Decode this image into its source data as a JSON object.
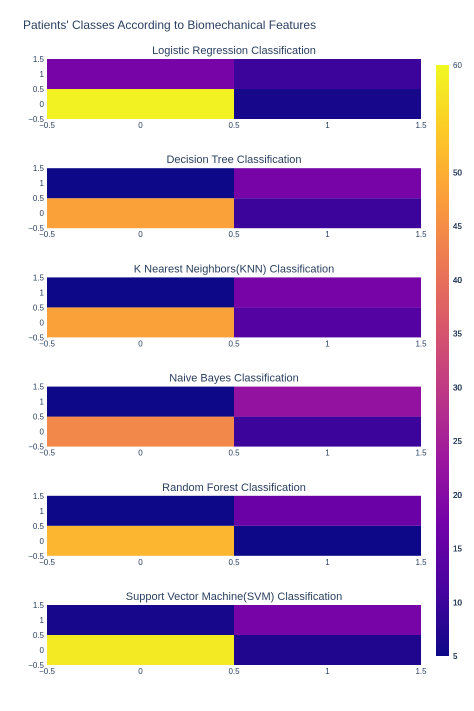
{
  "title": "Patients' Classes According to Biomechanical Features",
  "colors": {
    "text": "#2a3f5f",
    "colorscale": [
      "#0d0887",
      "#46039f",
      "#7201a8",
      "#9c179e",
      "#bd3786",
      "#d8576b",
      "#ed7953",
      "#fb9f3a",
      "#fdca26",
      "#f0f921"
    ]
  },
  "chart_data": [
    {
      "type": "heatmap",
      "title": "Logistic Regression Classification",
      "x": [
        0,
        1
      ],
      "y": [
        0,
        1
      ],
      "z": [
        [
          59,
          6
        ],
        [
          18,
          10
        ]
      ],
      "x_ticks": [
        "−0.5",
        "0",
        "0.5",
        "1",
        "1.5"
      ],
      "y_ticks": [
        "1.5",
        "1",
        "0.5",
        "0",
        "−0.5"
      ],
      "xlim": [
        -0.5,
        1.5
      ],
      "ylim": [
        -0.5,
        1.5
      ],
      "colorbar_ticks": [
        "50",
        "50"
      ]
    },
    {
      "type": "heatmap",
      "title": "Decision Tree Classification",
      "x": [
        0,
        1
      ],
      "y": [
        0,
        1
      ],
      "z": [
        [
          48,
          10
        ],
        [
          5,
          18
        ]
      ],
      "x_ticks": [
        "−0.5",
        "0",
        "0.5",
        "1",
        "1.5"
      ],
      "y_ticks": [
        "1.5",
        "1",
        "0.5",
        "0",
        "−0.5"
      ],
      "xlim": [
        -0.5,
        1.5
      ],
      "ylim": [
        -0.5,
        1.5
      ],
      "colorbar_ticks": [
        "45",
        "40",
        "35",
        "30",
        "25",
        "20",
        "15",
        "10",
        "5"
      ]
    },
    {
      "type": "heatmap",
      "title": "K Nearest Neighbors(KNN) Classification",
      "x": [
        0,
        1
      ],
      "y": [
        0,
        1
      ],
      "z": [
        [
          48,
          13
        ],
        [
          5,
          18
        ]
      ],
      "x_ticks": [
        "−0.5",
        "0",
        "0.5",
        "1",
        "1.5"
      ],
      "y_ticks": [
        "1.5",
        "1",
        "0.5",
        "0",
        "−0.5"
      ],
      "xlim": [
        -0.5,
        1.5
      ],
      "ylim": [
        -0.5,
        1.5
      ],
      "colorbar_ticks": [
        "45",
        "40",
        "35",
        "30",
        "25",
        "20",
        "15",
        "10",
        "5"
      ]
    },
    {
      "type": "heatmap",
      "title": "Naive Bayes Classification",
      "x": [
        0,
        1
      ],
      "y": [
        0,
        1
      ],
      "z": [
        [
          44,
          10
        ],
        [
          5,
          22
        ]
      ],
      "x_ticks": [
        "−0.5",
        "0",
        "0.5",
        "1",
        "1.5"
      ],
      "y_ticks": [
        "1.5",
        "1",
        "0.5",
        "0",
        "−0.5"
      ],
      "xlim": [
        -0.5,
        1.5
      ],
      "ylim": [
        -0.5,
        1.5
      ],
      "colorbar_ticks": [
        "40",
        "35",
        "30",
        "25",
        "20",
        "15",
        "10",
        "5"
      ]
    },
    {
      "type": "heatmap",
      "title": "Random Forest Classification",
      "x": [
        0,
        1
      ],
      "y": [
        0,
        1
      ],
      "z": [
        [
          51,
          5
        ],
        [
          5,
          16
        ]
      ],
      "x_ticks": [
        "−0.5",
        "0",
        "0.5",
        "1",
        "1.5"
      ],
      "y_ticks": [
        "1.5",
        "1",
        "0.5",
        "0",
        "−0.5"
      ],
      "xlim": [
        -0.5,
        1.5
      ],
      "ylim": [
        -0.5,
        1.5
      ],
      "colorbar_ticks": [
        "50",
        "45",
        "40",
        "35",
        "30",
        "25",
        "20",
        "15",
        "10",
        "5"
      ]
    },
    {
      "type": "heatmap",
      "title": "Support Vector Machine(SVM) Classification",
      "x": [
        0,
        1
      ],
      "y": [
        0,
        1
      ],
      "z": [
        [
          58,
          7
        ],
        [
          6,
          18
        ]
      ],
      "x_ticks": [
        "−0.5",
        "0",
        "0.5",
        "1",
        "1.5"
      ],
      "y_ticks": [
        "1.5",
        "1",
        "0.5",
        "0",
        "−0.5"
      ],
      "xlim": [
        -0.5,
        1.5
      ],
      "ylim": [
        -0.5,
        1.5
      ],
      "colorbar_ticks": [
        "50",
        "40",
        "30",
        "20",
        "10"
      ]
    }
  ],
  "colorbars": [
    {
      "ticks": [
        "60",
        "50",
        "40",
        "30",
        "20",
        "10"
      ]
    },
    {
      "ticks": [
        "45",
        "40",
        "35",
        "30",
        "25",
        "20",
        "15",
        "10",
        "5"
      ]
    }
  ]
}
